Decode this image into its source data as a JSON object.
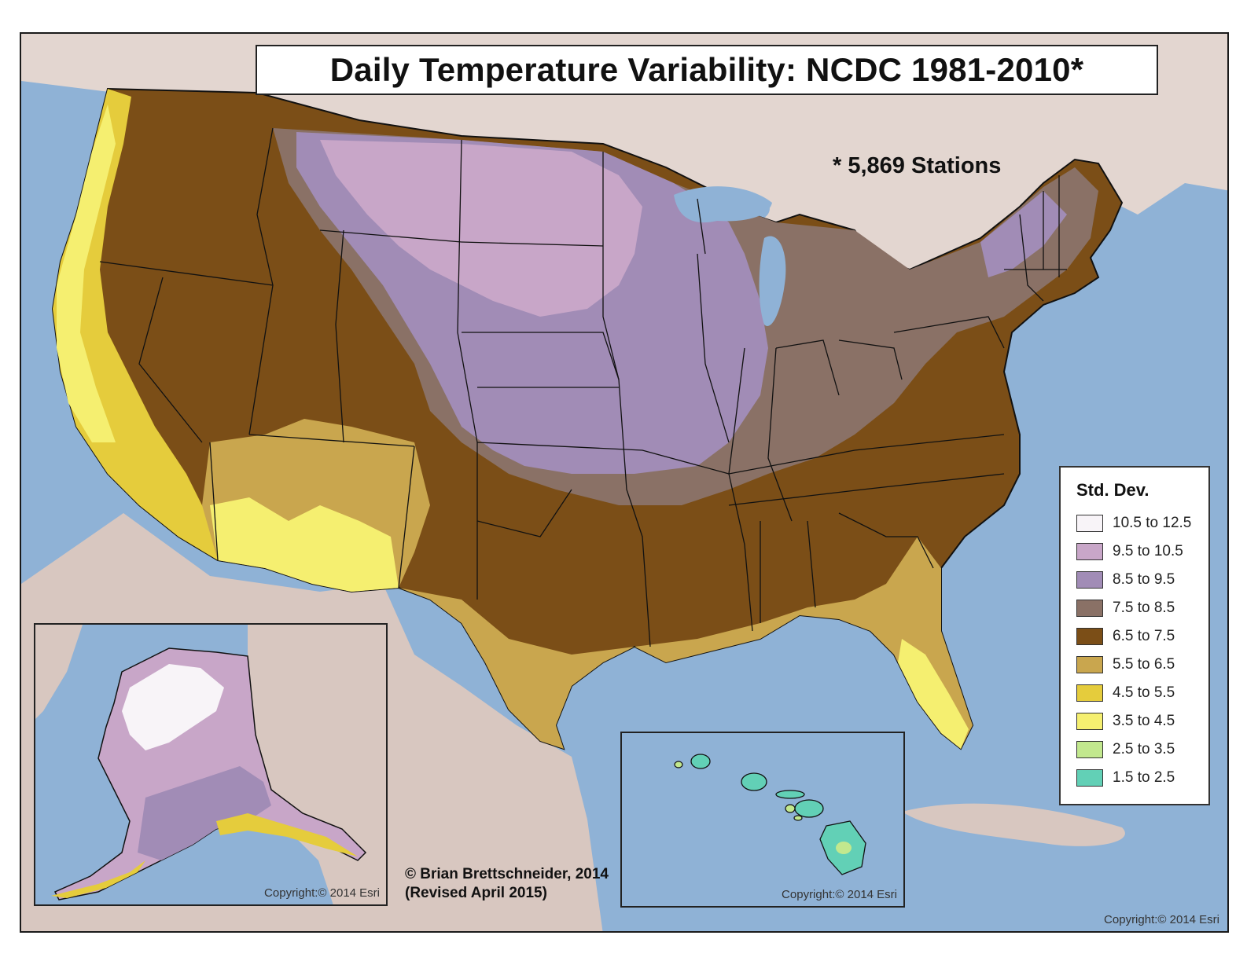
{
  "map": {
    "title": "Daily Temperature Variability: NCDC 1981-2010*",
    "footnote": "* 5,869 Stations",
    "credit_line1": "© Brian Brettschneider, 2014",
    "credit_line2": "(Revised April 2015)",
    "copyright_main": "Copyright:© 2014 Esri",
    "copyright_alaska": "Copyright:© 2014 Esri",
    "copyright_hawaii": "Copyright:© 2014 Esri",
    "colors": {
      "water": "#8fb2d6",
      "land": "#d8c7c0",
      "canada": "#e3d6d0"
    }
  },
  "legend": {
    "title": "Std. Dev.",
    "items": [
      {
        "label": "10.5 to 12.5",
        "color": "#f8f4f8"
      },
      {
        "label": "9.5 to 10.5",
        "color": "#c8a6c8"
      },
      {
        "label": "8.5 to 9.5",
        "color": "#a18cb6"
      },
      {
        "label": "7.5 to 8.5",
        "color": "#8a7166"
      },
      {
        "label": "6.5 to 7.5",
        "color": "#7b4e17"
      },
      {
        "label": "5.5 to 6.5",
        "color": "#c9a64e"
      },
      {
        "label": "4.5 to 5.5",
        "color": "#e5cc3c"
      },
      {
        "label": "3.5 to 4.5",
        "color": "#f5ef70"
      },
      {
        "label": "2.5 to 3.5",
        "color": "#c2e88e"
      },
      {
        "label": "1.5 to 2.5",
        "color": "#62d0b6"
      }
    ]
  }
}
